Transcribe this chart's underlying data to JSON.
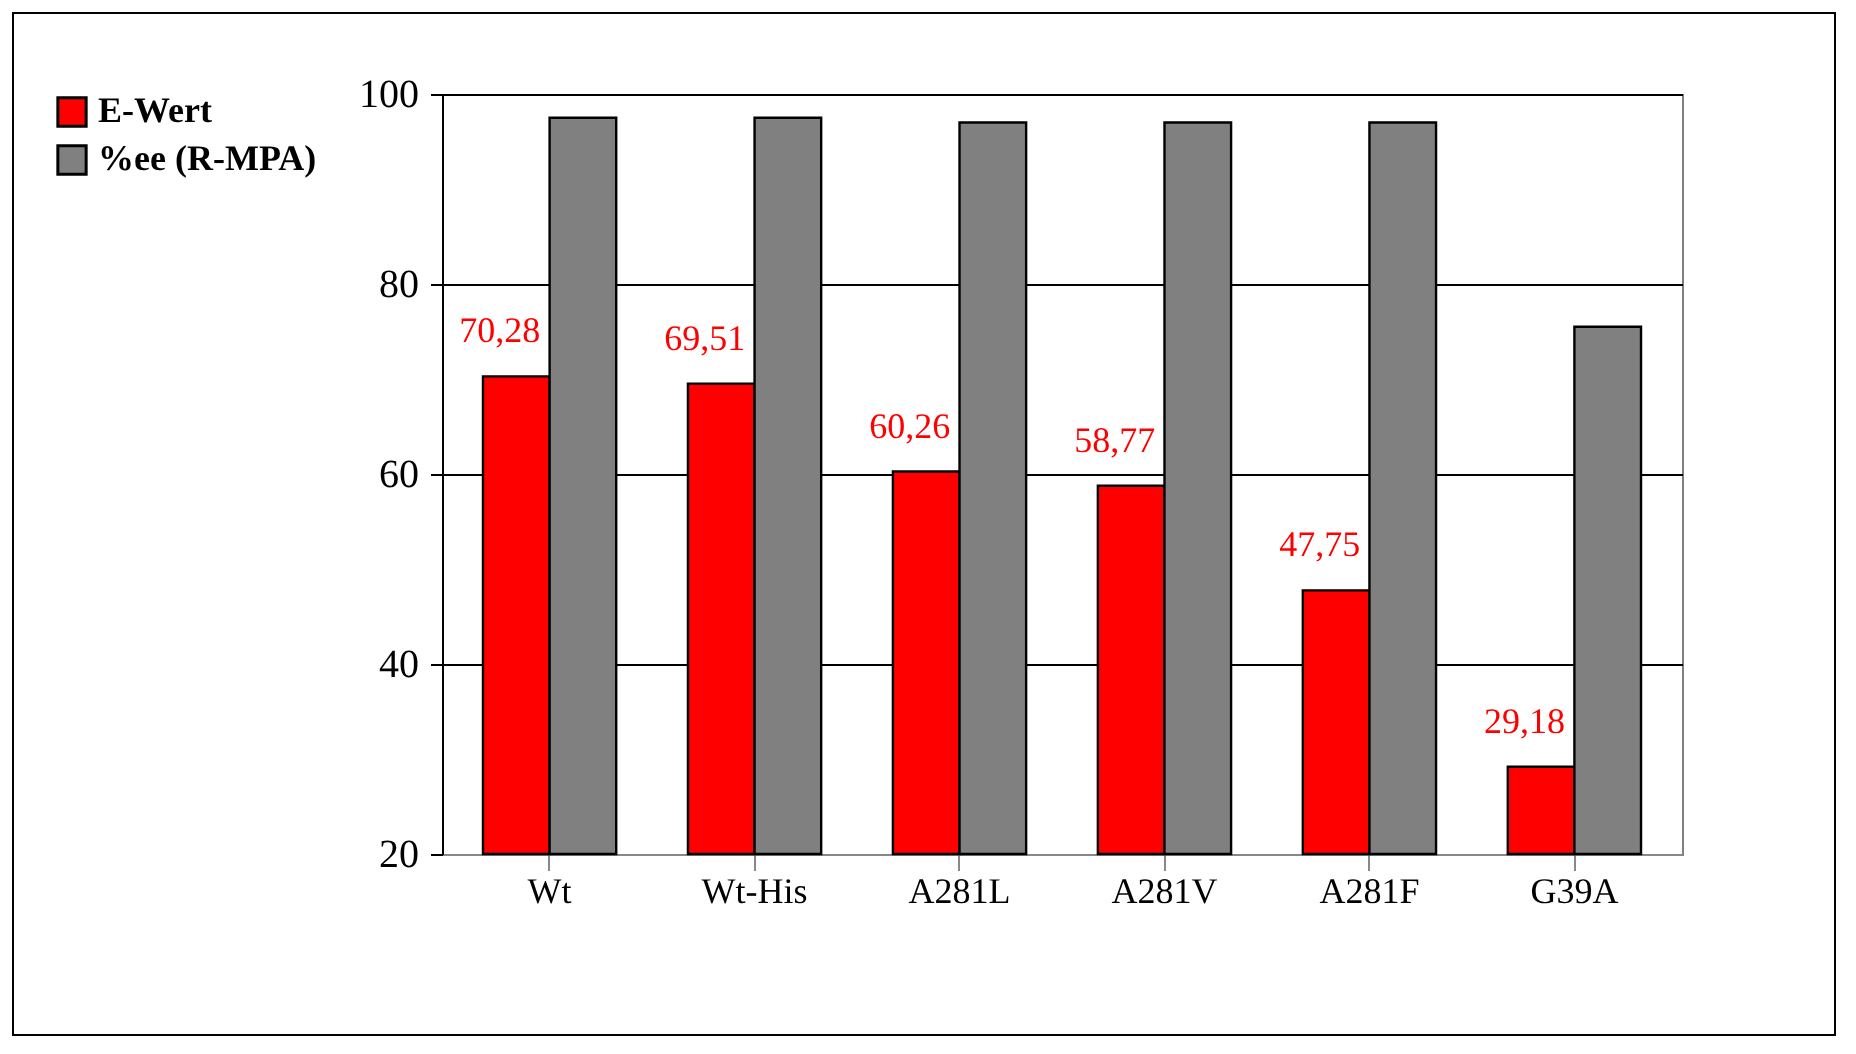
{
  "chart_data": {
    "type": "bar",
    "categories": [
      "Wt",
      "Wt-His",
      "A281L",
      "A281V",
      "A281F",
      "G39A"
    ],
    "series": [
      {
        "name": "E-Wert",
        "color": "#ff0000",
        "values": [
          70.28,
          69.51,
          60.26,
          58.77,
          47.75,
          29.18
        ],
        "value_labels": [
          "70,28",
          "69,51",
          "60,26",
          "58,77",
          "47,75",
          "29,18"
        ]
      },
      {
        "name": "%ee (R-MPA)",
        "color": "#808080",
        "values": [
          97.5,
          97.5,
          97,
          97,
          97,
          75.5
        ]
      }
    ],
    "ylim": [
      20,
      100
    ],
    "yticks": [
      20,
      40,
      60,
      80,
      100
    ],
    "grid": "y",
    "legend": "left"
  }
}
